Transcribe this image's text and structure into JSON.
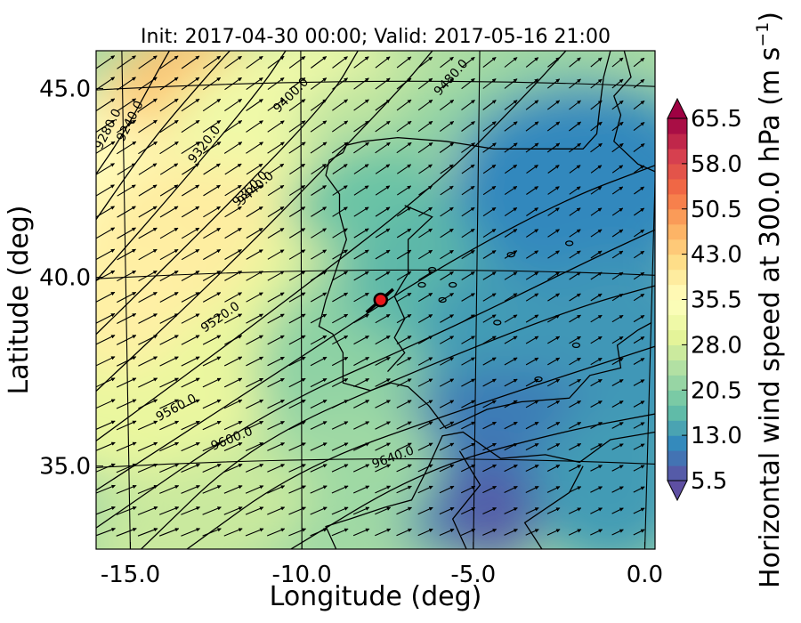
{
  "chart_data": {
    "type": "heatmap",
    "title": "Init: 2017-04-30 00:00; Valid: 2017-05-16 21:00",
    "xlabel": "Longitude (deg)",
    "ylabel": "Latitude (deg)",
    "xlim": [
      -16.0,
      0.3
    ],
    "ylim": [
      32.8,
      46.0
    ],
    "xticks": [
      -15.0,
      -10.0,
      -5.0,
      0.0
    ],
    "xtick_labels": [
      "-15.0",
      "-10.0",
      "-5.0",
      "0.0"
    ],
    "yticks": [
      35.0,
      40.0,
      45.0
    ],
    "ytick_labels": [
      "35.0",
      "40.0",
      "45.0"
    ],
    "colorbar": {
      "label_main": "Horizontal wind speed at 300.0 hPa (m s",
      "label_exp": "−1",
      "label_close": ")",
      "min": 5.5,
      "max": 65.5,
      "step": 2.5,
      "extend": "both",
      "ticks": [
        5.5,
        13.0,
        20.5,
        28.0,
        35.5,
        43.0,
        50.5,
        58.0,
        65.5
      ],
      "tick_labels": [
        "5.5",
        "13.0",
        "20.5",
        "28.0",
        "35.5",
        "43.0",
        "50.5",
        "58.0",
        "65.5"
      ],
      "colormap": "Spectral_r"
    },
    "contours": [
      {
        "label": "9240.0",
        "level": 9240.0
      },
      {
        "label": "9280.0",
        "level": 9280.0
      },
      {
        "label": "9320.0",
        "level": 9320.0
      },
      {
        "label": "9360.0",
        "level": 9360.0
      },
      {
        "label": "9400.0",
        "level": 9400.0
      },
      {
        "label": "9440.0",
        "level": 9440.0
      },
      {
        "label": "9480.0",
        "level": 9480.0
      },
      {
        "label": "9520.0",
        "level": 9520.0
      },
      {
        "label": "9560.0",
        "level": 9560.0
      },
      {
        "label": "9600.0",
        "level": 9600.0
      },
      {
        "label": "9640.0",
        "level": 9640.0
      }
    ],
    "marker": {
      "lon": -7.7,
      "lat": 39.4,
      "color": "#e8171b"
    },
    "wind_direction": "southwest-to-northeast",
    "grid": true
  }
}
